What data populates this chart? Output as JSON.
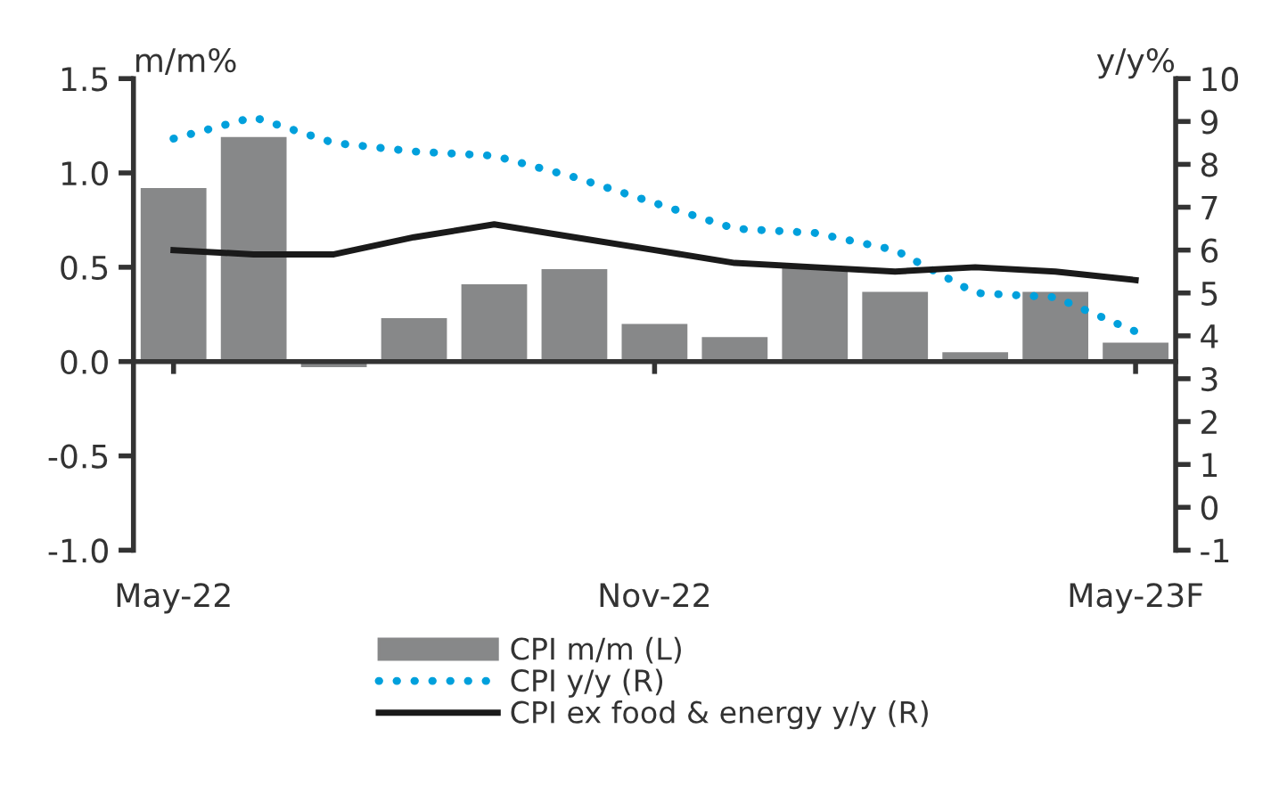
{
  "chart_data": {
    "type": "bar",
    "categories": [
      "May-22",
      null,
      null,
      null,
      null,
      null,
      "Nov-22",
      null,
      null,
      null,
      null,
      null,
      "May-23F"
    ],
    "ylabel": "m/m%",
    "y2label": "y/y%",
    "ylim": [
      -1.0,
      1.5
    ],
    "yticks": [
      {
        "value": -1.0,
        "label": "-1.0"
      },
      {
        "value": -0.5,
        "label": "-0.5"
      },
      {
        "value": 0.0,
        "label": "0.0"
      },
      {
        "value": 0.5,
        "label": "0.5"
      },
      {
        "value": 1.0,
        "label": "1.0"
      },
      {
        "value": 1.5,
        "label": "1.5"
      }
    ],
    "y2lim": [
      -1,
      10
    ],
    "y2ticks": [
      -1,
      0,
      1,
      2,
      3,
      4,
      5,
      6,
      7,
      8,
      9,
      10
    ],
    "series": [
      {
        "name": "CPI m/m (L)",
        "color": "#878889",
        "values": [
          0.92,
          1.19,
          -0.03,
          0.23,
          0.41,
          0.49,
          0.2,
          0.13,
          0.5,
          0.37,
          0.05,
          0.37,
          0.1
        ]
      },
      {
        "name": "CPI y/y (R)",
        "type": "line",
        "axis": "y2",
        "color": "#00a0dc",
        "line_style": "dotted",
        "values": [
          8.6,
          9.1,
          8.5,
          8.3,
          8.2,
          7.7,
          7.1,
          6.5,
          6.4,
          6.0,
          5.0,
          4.9,
          4.1
        ]
      },
      {
        "name": "CPI ex food & energy y/y (R)",
        "type": "line",
        "axis": "y2",
        "color": "#1a1a1a",
        "line_style": "solid",
        "values": [
          6.0,
          5.9,
          5.9,
          6.3,
          6.6,
          6.3,
          6.0,
          5.7,
          5.6,
          5.5,
          5.6,
          5.5,
          5.3
        ]
      }
    ],
    "legend": "bottom"
  }
}
